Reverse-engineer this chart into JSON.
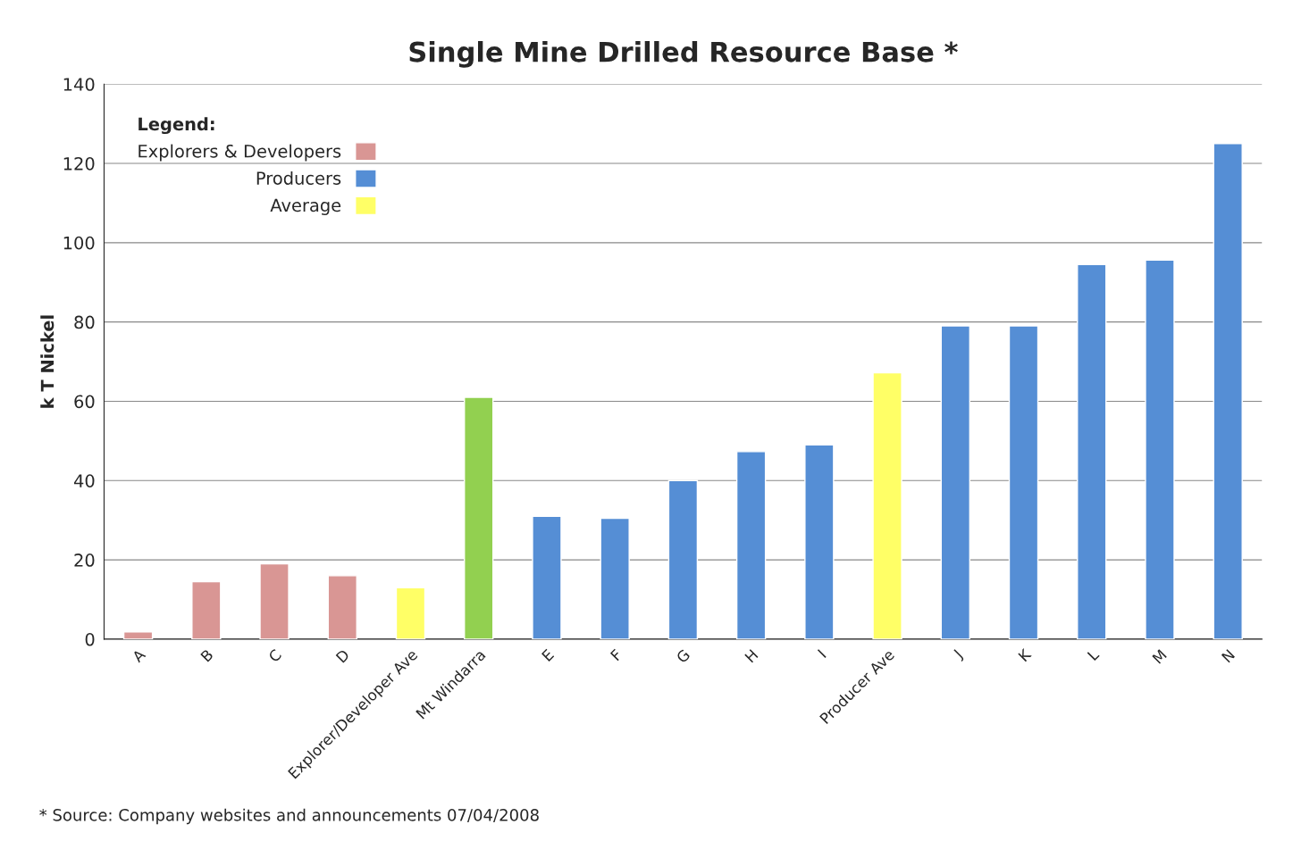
{
  "chart_data": {
    "type": "bar",
    "title": "Single Mine Drilled Resource Base *",
    "ylabel": "k T Nickel",
    "legend_title": "Legend:",
    "legend": "top left",
    "grid": "y",
    "categories": [
      "A",
      "B",
      "C",
      "D",
      "Explorer/Developer Ave",
      "Mt Windarra",
      "E",
      "F",
      "G",
      "H",
      "I",
      "Producer Ave",
      "J",
      "K",
      "L",
      "M",
      "N"
    ],
    "series": [
      {
        "name": "Explorers & Developers",
        "color": "#d99694",
        "values": [
          1.8,
          14.5,
          19,
          16,
          null,
          null,
          null,
          null,
          null,
          null,
          null,
          null,
          null,
          null,
          null,
          null,
          null
        ]
      },
      {
        "name": "Producers",
        "color": "#558ed5",
        "values": [
          null,
          null,
          null,
          null,
          null,
          null,
          31,
          30.5,
          40,
          47.3,
          49,
          null,
          79,
          79,
          94.5,
          95.6,
          125
        ]
      },
      {
        "name": "Average",
        "color": "#ffff66",
        "values": [
          null,
          null,
          null,
          null,
          13,
          null,
          null,
          null,
          null,
          null,
          null,
          67.2,
          null,
          null,
          null,
          null,
          null
        ]
      },
      {
        "color": "#92d050",
        "values": [
          null,
          null,
          null,
          null,
          null,
          61,
          null,
          null,
          null,
          null,
          null,
          null,
          null,
          null,
          null,
          null,
          null
        ]
      }
    ],
    "ylim": [
      0,
      140
    ],
    "yticks": [
      0,
      20,
      40,
      60,
      80,
      100,
      120,
      140
    ],
    "annotations": [
      "* Source: Company websites and announcements 07/04/2008"
    ]
  }
}
